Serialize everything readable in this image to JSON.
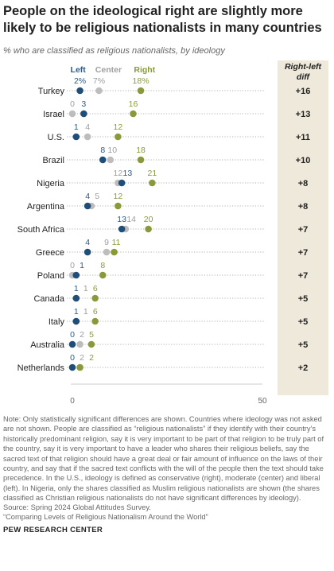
{
  "title": "People on the ideological right are slightly more likely to be religious nationalists in many countries",
  "subtitle": "% who are classified as religious nationalists, by ideology",
  "note": "Note: Only statistically significant differences are shown. Countries where ideology was not asked are not shown. People are classified as “religious nationalists” if they identify with their country’s historically predominant religion, say it is very important to be part of that religion to be truly part of the country, say it is very important to have a leader who shares their religious beliefs, say the sacred text of that religion should have a great deal or fair amount of influence on the laws of their country, and say that if the sacred text conflicts with the will of the people then the text should take precedence. In the U.S., ideology is defined as conservative (right), moderate (center) and liberal (left). In Nigeria, only the shares classified as Muslim religious nationalists are shown (the shares classified as Christian religious nationalists do not have significant differences by ideology).",
  "source": "Source: Spring 2024 Global Attitudes Survey.",
  "report": "“Comparing Levels of Religious Nationalism Around the World”",
  "brand": "PEW RESEARCH CENTER",
  "colors": {
    "left": "#1f4e79",
    "center": "#bdbdbd",
    "right": "#8a9a3a",
    "left_text": "#2a5b8c",
    "center_text": "#9e9e9e",
    "right_text": "#8a9a3a",
    "diff_bg": "#efe9dc"
  },
  "chart_data": {
    "type": "scatter",
    "title": "People on the ideological right are slightly more likely to be religious nationalists in many countries",
    "subtitle": "% who are classified as religious nationalists, by ideology",
    "xlim": [
      0,
      50
    ],
    "x_ticks": [
      "0",
      "50"
    ],
    "legend": [
      "Left",
      "Center",
      "Right"
    ],
    "diff_header": "Right-left diff",
    "categories": [
      "Turkey",
      "Israel",
      "U.S.",
      "Brazil",
      "Nigeria",
      "Argentina",
      "South Africa",
      "Greece",
      "Poland",
      "Canada",
      "Italy",
      "Australia",
      "Netherlands"
    ],
    "series": [
      {
        "name": "Left",
        "values": [
          2,
          3,
          1,
          8,
          13,
          4,
          13,
          4,
          1,
          1,
          1,
          0,
          0
        ]
      },
      {
        "name": "Center",
        "values": [
          7,
          0,
          4,
          10,
          12,
          5,
          14,
          9,
          0,
          1,
          1,
          2,
          2
        ]
      },
      {
        "name": "Right",
        "values": [
          18,
          16,
          12,
          18,
          21,
          12,
          20,
          11,
          8,
          6,
          6,
          5,
          2
        ]
      }
    ],
    "label_text": [
      [
        "2%",
        "7%",
        "18%"
      ],
      [
        "3",
        "0",
        "16"
      ],
      [
        "1",
        "4",
        "12"
      ],
      [
        "8",
        "10",
        "18"
      ],
      [
        "13",
        "12",
        "21"
      ],
      [
        "4",
        "5",
        "12"
      ],
      [
        "13",
        "14",
        "20"
      ],
      [
        "4",
        "9",
        "11"
      ],
      [
        "1",
        "0",
        "8"
      ],
      [
        "1",
        "1",
        "6"
      ],
      [
        "1",
        "1",
        "6"
      ],
      [
        "0",
        "2",
        "5"
      ],
      [
        "0",
        "2",
        "2"
      ]
    ],
    "diff": [
      "+16",
      "+13",
      "+11",
      "+10",
      "+8",
      "+8",
      "+7",
      "+7",
      "+7",
      "+5",
      "+5",
      "+5",
      "+2"
    ]
  }
}
